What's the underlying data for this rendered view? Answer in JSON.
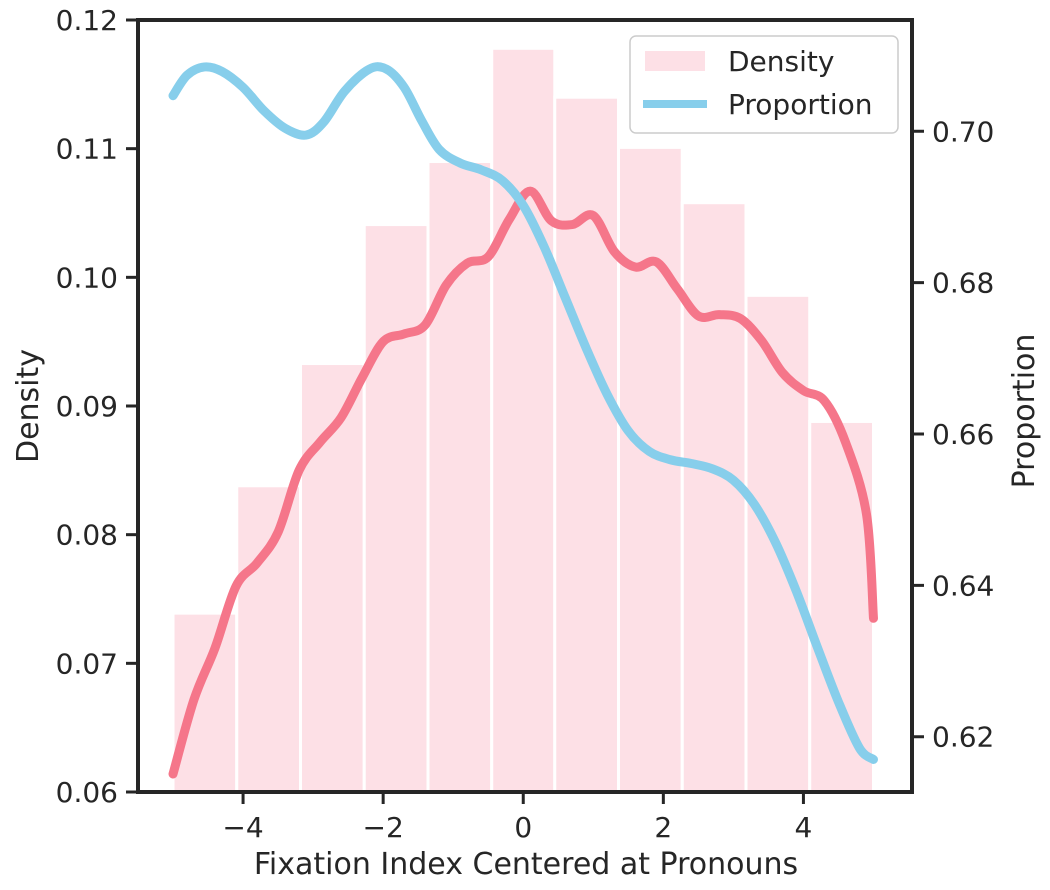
{
  "chart_data": {
    "type": "bar",
    "xlabel": "Fixation Index Centered at Pronouns",
    "ylabel": "Density",
    "y2label": "Proportion",
    "xlim": [
      -5.5,
      5.55
    ],
    "ylim": [
      0.06,
      0.12
    ],
    "y2lim": [
      0.6127,
      0.7147
    ],
    "xticks": [
      -4,
      -2,
      0,
      2,
      4
    ],
    "xtick_labels": [
      "−4",
      "−2",
      "0",
      "2",
      "4"
    ],
    "yticks": [
      0.06,
      0.07,
      0.08,
      0.09,
      0.1,
      0.11,
      0.12
    ],
    "ytick_labels": [
      "0.06",
      "0.07",
      "0.08",
      "0.09",
      "0.10",
      "0.11",
      "0.12"
    ],
    "y2ticks": [
      0.62,
      0.64,
      0.66,
      0.68,
      0.7
    ],
    "y2tick_labels": [
      "0.62",
      "0.64",
      "0.66",
      "0.68",
      "0.70"
    ],
    "grid": false,
    "legend_position": "top-right",
    "legend": [
      {
        "label": "Density",
        "kind": "patch",
        "color": "#fde0e6"
      },
      {
        "label": "Proportion",
        "kind": "line",
        "color": "#87ceeb"
      }
    ],
    "bars": {
      "name": "Density",
      "color": "#fde0e6",
      "edge_color": "#ffffff",
      "bin_edges": [
        -5.0,
        -4.09,
        -3.18,
        -2.27,
        -1.36,
        -0.45,
        0.45,
        1.36,
        2.27,
        3.18,
        4.09,
        5.0
      ],
      "values": [
        0.0739,
        0.0838,
        0.0933,
        0.1041,
        0.109,
        0.1178,
        0.114,
        0.1101,
        0.1058,
        0.0986,
        0.0888
      ]
    },
    "density_curve": {
      "color": "#f5768a",
      "axis": "left",
      "x": [
        -5.0,
        -4.7,
        -4.4,
        -4.1,
        -3.8,
        -3.5,
        -3.2,
        -2.9,
        -2.6,
        -2.3,
        -2.0,
        -1.7,
        -1.4,
        -1.1,
        -0.8,
        -0.5,
        -0.2,
        0.1,
        0.4,
        0.7,
        1.0,
        1.3,
        1.6,
        1.9,
        2.2,
        2.5,
        2.8,
        3.1,
        3.4,
        3.7,
        4.0,
        4.3,
        4.6,
        4.9,
        5.0
      ],
      "y": [
        0.0614,
        0.0672,
        0.0712,
        0.076,
        0.0778,
        0.0802,
        0.085,
        0.0872,
        0.0891,
        0.0922,
        0.095,
        0.0956,
        0.0963,
        0.0994,
        0.1011,
        0.1016,
        0.1045,
        0.1067,
        0.1044,
        0.1041,
        0.1048,
        0.102,
        0.1008,
        0.1012,
        0.0991,
        0.097,
        0.0971,
        0.0968,
        0.0951,
        0.0926,
        0.0912,
        0.0904,
        0.0872,
        0.0816,
        0.0735
      ]
    },
    "proportion_curve": {
      "name": "Proportion",
      "color": "#87ceeb",
      "axis": "right",
      "x": [
        -5.0,
        -4.8,
        -4.55,
        -4.3,
        -4.0,
        -3.7,
        -3.4,
        -3.1,
        -2.85,
        -2.55,
        -2.2,
        -1.95,
        -1.7,
        -1.45,
        -1.2,
        -0.9,
        -0.6,
        -0.3,
        0.0,
        0.3,
        0.6,
        0.9,
        1.2,
        1.5,
        1.8,
        2.1,
        2.4,
        2.7,
        3.0,
        3.3,
        3.6,
        3.9,
        4.2,
        4.5,
        4.8,
        5.0
      ],
      "y": [
        0.7047,
        0.7074,
        0.7085,
        0.7079,
        0.7058,
        0.7027,
        0.7004,
        0.6995,
        0.7012,
        0.7053,
        0.7082,
        0.7082,
        0.7058,
        0.7014,
        0.6976,
        0.6958,
        0.6949,
        0.6935,
        0.6902,
        0.6847,
        0.678,
        0.6713,
        0.6652,
        0.6604,
        0.6577,
        0.6566,
        0.6561,
        0.6554,
        0.6539,
        0.6507,
        0.6457,
        0.6392,
        0.6318,
        0.6246,
        0.6185,
        0.617
      ]
    }
  }
}
